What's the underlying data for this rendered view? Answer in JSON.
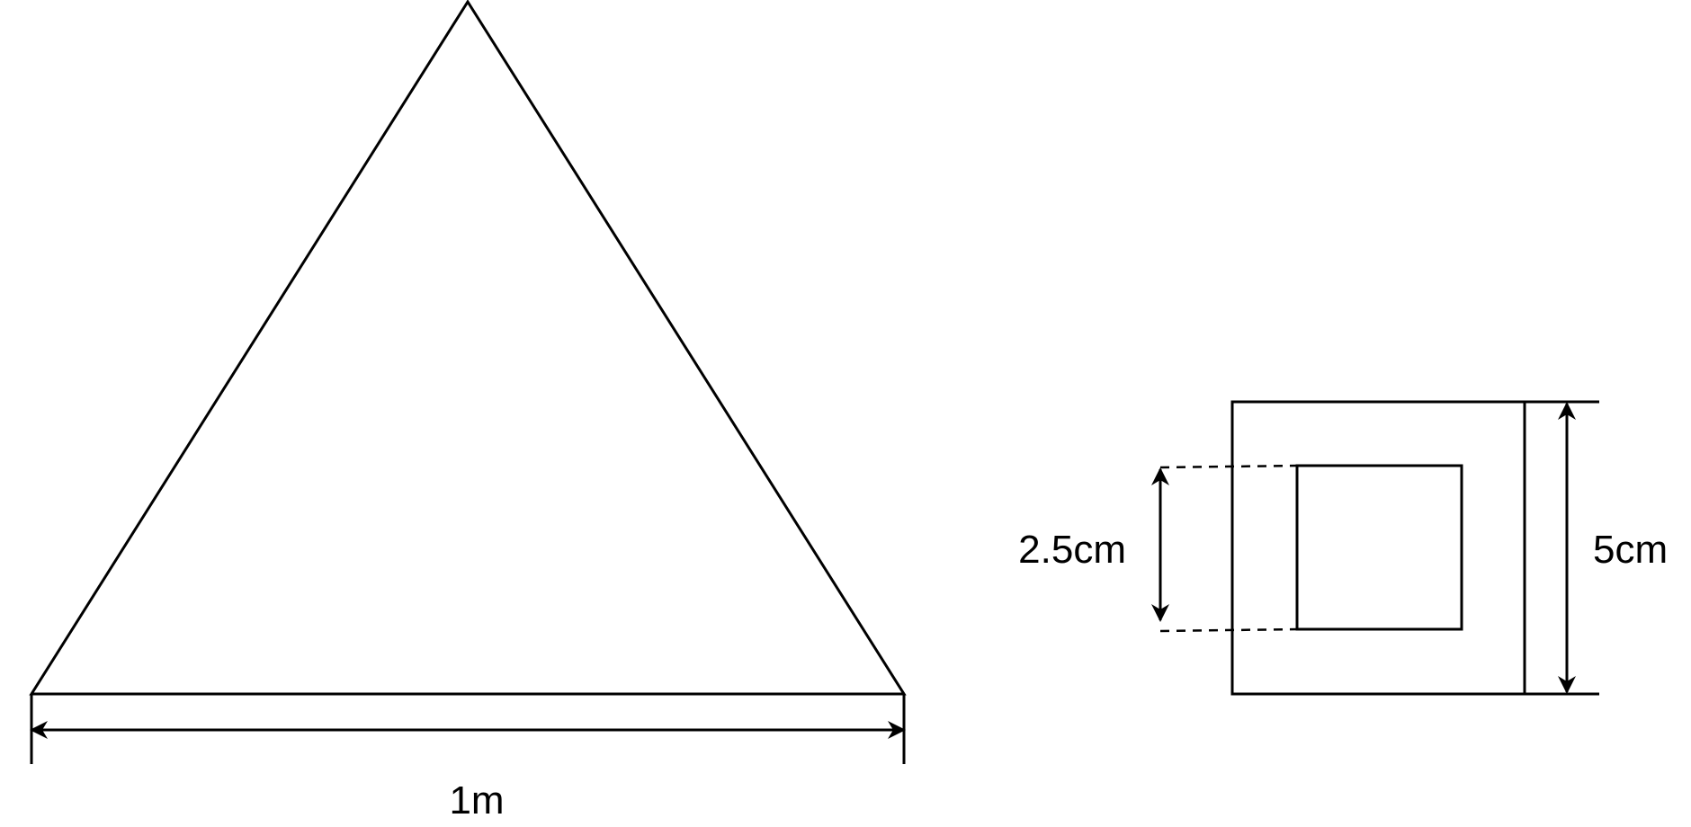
{
  "labels": {
    "triangle_base": "1m",
    "inner_square": "2.5cm",
    "outer_square": "5cm"
  },
  "colors": {
    "line": "#000000",
    "background": "#ffffff"
  }
}
